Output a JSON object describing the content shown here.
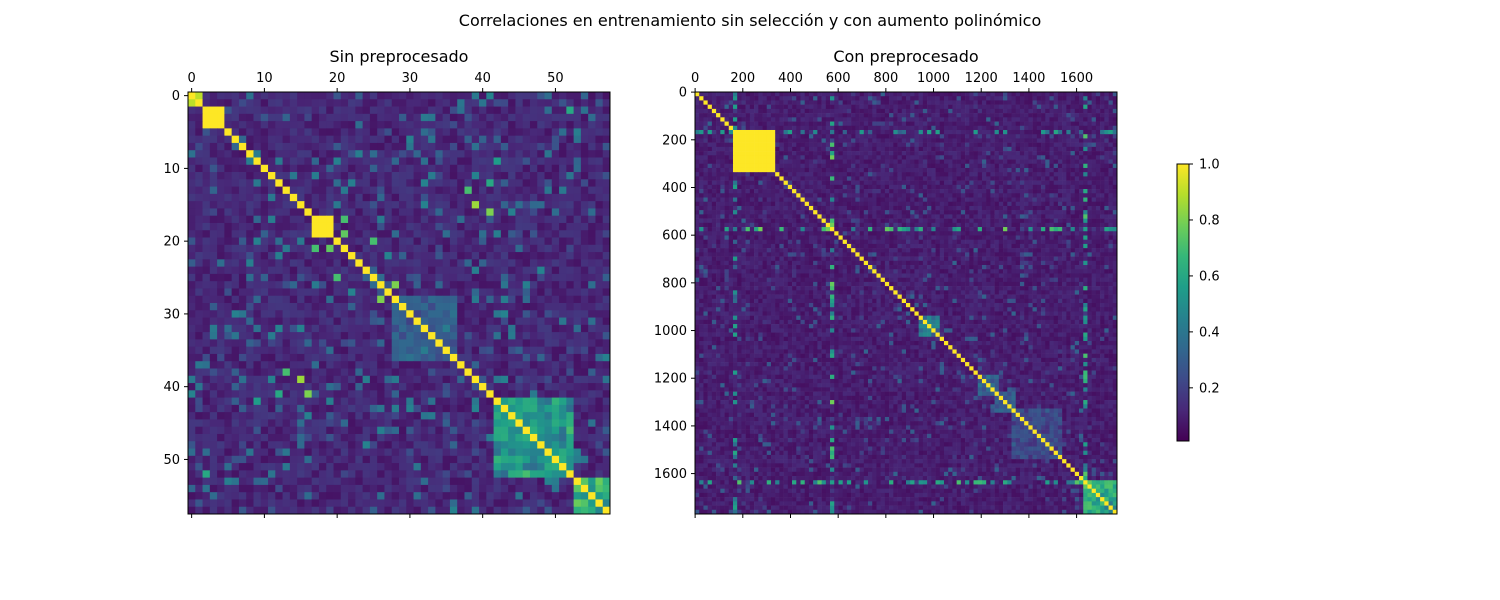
{
  "figure": {
    "title": "Correlaciones en entrenamiento sin selección y con aumento polinómico"
  },
  "chart_data": [
    {
      "type": "heatmap",
      "title": "Sin preprocesado",
      "n": 58,
      "x_ticks": [
        0,
        10,
        20,
        30,
        40,
        50
      ],
      "y_ticks": [
        0,
        10,
        20,
        30,
        40,
        50
      ],
      "value_range": [
        0,
        1
      ],
      "diagonal_value": 1.0,
      "background_value": 0.05,
      "blocks": [
        {
          "from": 2,
          "to": 4,
          "value": 1.0
        },
        {
          "from": 17,
          "to": 19,
          "value": 1.0
        },
        {
          "from": 28,
          "to": 36,
          "value": 0.25
        },
        {
          "from": 42,
          "to": 52,
          "value": 0.45
        },
        {
          "from": 53,
          "to": 57,
          "value": 0.55
        }
      ],
      "strong_pairs": [
        {
          "i": 0,
          "j": 1,
          "value": 0.9
        },
        {
          "i": 17,
          "j": 21,
          "value": 0.7
        },
        {
          "i": 19,
          "j": 21,
          "value": 0.75
        },
        {
          "i": 20,
          "j": 25,
          "value": 0.7
        },
        {
          "i": 26,
          "j": 28,
          "value": 0.8
        },
        {
          "i": 13,
          "j": 38,
          "value": 0.7
        },
        {
          "i": 15,
          "j": 39,
          "value": 0.85
        },
        {
          "i": 42,
          "j": 50,
          "value": 0.65
        },
        {
          "i": 46,
          "j": 52,
          "value": 0.7
        },
        {
          "i": 2,
          "j": 52,
          "value": 0.6
        },
        {
          "i": 12,
          "j": 41,
          "value": 0.6
        },
        {
          "i": 41,
          "j": 16,
          "value": 0.8
        },
        {
          "i": 9,
          "j": 42,
          "value": 0.55
        }
      ]
    },
    {
      "type": "heatmap",
      "title": "Con preprocesado",
      "n": 1770,
      "x_ticks": [
        0,
        200,
        400,
        600,
        800,
        1000,
        1200,
        1400,
        1600
      ],
      "y_ticks": [
        0,
        200,
        400,
        600,
        800,
        1000,
        1200,
        1400,
        1600
      ],
      "value_range": [
        0,
        1
      ],
      "diagonal_value": 1.0,
      "background_value": 0.04,
      "blocks": [
        {
          "from": 170,
          "to": 330,
          "value": 1.0
        },
        {
          "from": 950,
          "to": 1020,
          "value": 0.35
        },
        {
          "from": 1200,
          "to": 1270,
          "value": 0.3
        },
        {
          "from": 1270,
          "to": 1340,
          "value": 0.25
        },
        {
          "from": 1340,
          "to": 1530,
          "value": 0.2
        },
        {
          "from": 1630,
          "to": 1770,
          "value": 0.55
        }
      ],
      "strong_rows": [
        {
          "at": 575,
          "value": 0.8
        },
        {
          "at": 1645,
          "value": 0.75
        },
        {
          "at": 160,
          "value": 0.6
        }
      ]
    }
  ],
  "colorbar": {
    "ticks": [
      "0.2",
      "0.4",
      "0.6",
      "0.8",
      "1.0"
    ],
    "tick_values": [
      0.2,
      0.4,
      0.6,
      0.8,
      1.0
    ],
    "range": [
      0,
      1
    ]
  },
  "colormap": [
    "#440154",
    "#482878",
    "#3e4a89",
    "#31688e",
    "#26828e",
    "#1f9e89",
    "#35b779",
    "#6ece58",
    "#b5de2b",
    "#fde725"
  ]
}
